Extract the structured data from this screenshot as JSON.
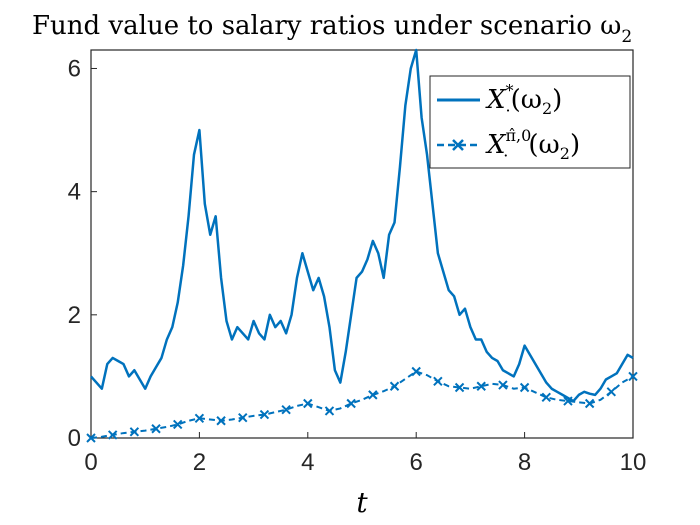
{
  "chart_data": {
    "type": "line",
    "title": "Fund value to salary ratios under scenario ω",
    "title_subscript": "2",
    "xlabel": "t",
    "ylabel": "",
    "xlim": [
      0,
      10
    ],
    "ylim": [
      0,
      6.3
    ],
    "x_ticks": [
      "0",
      "2",
      "4",
      "6",
      "8",
      "10"
    ],
    "y_ticks": [
      "0",
      "2",
      "4",
      "6"
    ],
    "grid": false,
    "legend_position": "top-right",
    "color": "#0072BD",
    "legend": [
      {
        "main": "X",
        "sup": "*",
        "sub": "·",
        "arg": "(ω",
        "argsub": "2",
        "close": ")"
      },
      {
        "main": "X",
        "sup": "π̂,0",
        "sub": "·",
        "arg": "(ω",
        "argsub": "2",
        "close": ")"
      }
    ],
    "series": [
      {
        "x": [
          0,
          0.1,
          0.2,
          0.3,
          0.4,
          0.5,
          0.6,
          0.7,
          0.8,
          0.9,
          1.0,
          1.1,
          1.2,
          1.3,
          1.4,
          1.5,
          1.6,
          1.7,
          1.8,
          1.9,
          2.0,
          2.1,
          2.2,
          2.3,
          2.4,
          2.5,
          2.6,
          2.7,
          2.8,
          2.9,
          3.0,
          3.1,
          3.2,
          3.3,
          3.4,
          3.5,
          3.6,
          3.7,
          3.8,
          3.9,
          4.0,
          4.1,
          4.2,
          4.3,
          4.4,
          4.5,
          4.6,
          4.7,
          4.8,
          4.9,
          5.0,
          5.1,
          5.2,
          5.3,
          5.4,
          5.5,
          5.6,
          5.7,
          5.8,
          5.9,
          6.0,
          6.1,
          6.2,
          6.3,
          6.4,
          6.5,
          6.6,
          6.7,
          6.8,
          6.9,
          7.0,
          7.1,
          7.2,
          7.3,
          7.4,
          7.5,
          7.6,
          7.7,
          7.8,
          7.9,
          8.0,
          8.1,
          8.2,
          8.3,
          8.4,
          8.5,
          8.6,
          8.7,
          8.8,
          8.9,
          9.0,
          9.1,
          9.2,
          9.3,
          9.4,
          9.5,
          9.6,
          9.7,
          9.8,
          9.9,
          10.0
        ],
        "y": [
          1.0,
          0.9,
          0.8,
          1.2,
          1.3,
          1.25,
          1.2,
          1.0,
          1.1,
          0.95,
          0.8,
          1.0,
          1.15,
          1.3,
          1.6,
          1.8,
          2.2,
          2.8,
          3.6,
          4.6,
          5.0,
          3.8,
          3.3,
          3.6,
          2.6,
          1.9,
          1.6,
          1.8,
          1.7,
          1.6,
          1.9,
          1.7,
          1.6,
          2.0,
          1.8,
          1.9,
          1.7,
          2.0,
          2.6,
          3.0,
          2.7,
          2.4,
          2.6,
          2.3,
          1.8,
          1.1,
          0.9,
          1.4,
          2.0,
          2.6,
          2.7,
          2.9,
          3.2,
          3.0,
          2.6,
          3.3,
          3.5,
          4.4,
          5.4,
          6.0,
          6.3,
          5.2,
          4.6,
          3.8,
          3.0,
          2.7,
          2.4,
          2.3,
          2.0,
          2.1,
          1.8,
          1.6,
          1.6,
          1.4,
          1.3,
          1.25,
          1.1,
          1.05,
          1.0,
          1.2,
          1.5,
          1.35,
          1.2,
          1.05,
          0.9,
          0.8,
          0.75,
          0.7,
          0.65,
          0.6,
          0.7,
          0.75,
          0.72,
          0.7,
          0.8,
          0.95,
          1.0,
          1.05,
          1.2,
          1.35,
          1.3
        ]
      },
      {
        "x": [
          0,
          0.2,
          0.4,
          0.6,
          0.8,
          1.0,
          1.2,
          1.4,
          1.6,
          1.8,
          2.0,
          2.2,
          2.4,
          2.6,
          2.8,
          3.0,
          3.2,
          3.4,
          3.6,
          3.8,
          4.0,
          4.2,
          4.4,
          4.6,
          4.8,
          5.0,
          5.2,
          5.4,
          5.6,
          5.8,
          6.0,
          6.2,
          6.4,
          6.6,
          6.8,
          7.0,
          7.2,
          7.4,
          7.6,
          7.8,
          8.0,
          8.2,
          8.4,
          8.6,
          8.8,
          9.0,
          9.2,
          9.4,
          9.6,
          9.8,
          10.0
        ],
        "y": [
          0.0,
          0.02,
          0.05,
          0.08,
          0.1,
          0.12,
          0.15,
          0.18,
          0.22,
          0.28,
          0.32,
          0.3,
          0.28,
          0.3,
          0.33,
          0.36,
          0.38,
          0.42,
          0.46,
          0.52,
          0.56,
          0.5,
          0.44,
          0.48,
          0.56,
          0.62,
          0.7,
          0.76,
          0.84,
          0.96,
          1.08,
          1.02,
          0.92,
          0.84,
          0.82,
          0.8,
          0.84,
          0.88,
          0.86,
          0.8,
          0.82,
          0.74,
          0.66,
          0.62,
          0.6,
          0.58,
          0.56,
          0.62,
          0.75,
          0.9,
          1.0
        ]
      }
    ]
  }
}
